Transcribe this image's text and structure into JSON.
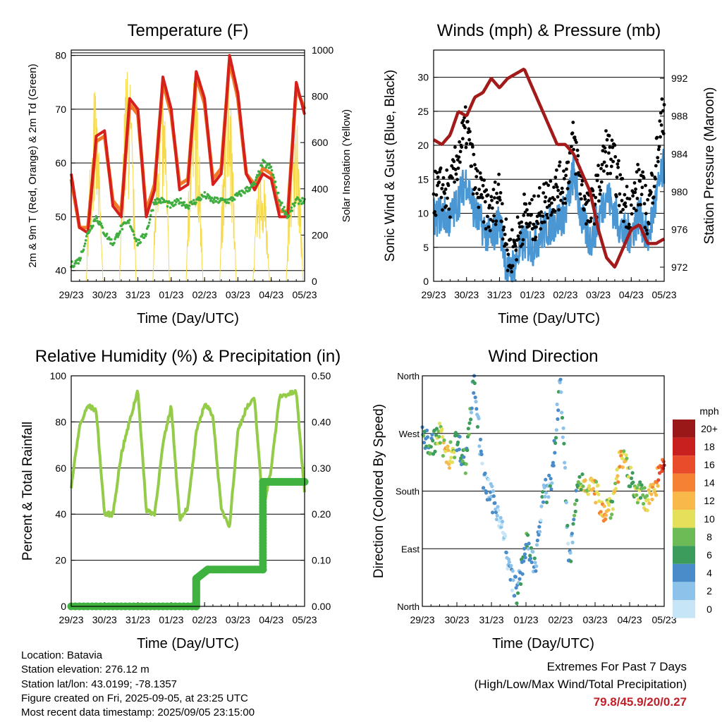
{
  "xticks": [
    "29/23",
    "30/23",
    "31/23",
    "01/23",
    "02/23",
    "03/23",
    "04/23",
    "05/23"
  ],
  "colors": {
    "temp2m": "#d6201c",
    "temp9m": "#f07a28",
    "dewpoint": "#3fad3f",
    "solar": "#f5d94a",
    "wind": "#4a97d4",
    "gust": "#000000",
    "pressure": "#a31a1a",
    "rh": "#94cc4a",
    "precip": "#3fb23f"
  },
  "panels": {
    "temperature": {
      "title": "Temperature (F)",
      "xlabel": "Time (Day/UTC)",
      "ylabel_left": "2m & 9m T (Red, Orange) & 2m Td (Green)",
      "ylabel_right": "Solar Insolation (Yellow)",
      "yticks_left": [
        "40",
        "50",
        "60",
        "70",
        "80"
      ],
      "yticks_right": [
        "0",
        "200",
        "400",
        "600",
        "800",
        "1000"
      ]
    },
    "winds": {
      "title": "Winds (mph) & Pressure (mb)",
      "xlabel": "Time (Day/UTC)",
      "ylabel_left": "Sonic Wind & Gust (Blue, Black)",
      "ylabel_right": "Station Pressure (Maroon)",
      "yticks_left": [
        "0",
        "5",
        "10",
        "15",
        "20",
        "25",
        "30"
      ],
      "yticks_right": [
        "972",
        "976",
        "980",
        "984",
        "988",
        "992"
      ]
    },
    "humidity": {
      "title": "Relative Humidity (%) & Precipitation (in)",
      "xlabel": "Time (Day/UTC)",
      "ylabel_left": "Percent & Total Rainfall",
      "yticks_left": [
        "0",
        "20",
        "40",
        "60",
        "80",
        "100"
      ],
      "yticks_right": [
        "0.00",
        "0.10",
        "0.20",
        "0.30",
        "0.40",
        "0.50"
      ]
    },
    "direction": {
      "title": "Wind Direction",
      "xlabel": "Time (Day/UTC)",
      "ylabel_left": "Direction (Colored By Speed)",
      "yticks_left": [
        "North",
        "East",
        "South",
        "West",
        "North"
      ],
      "colorbar_title": "mph",
      "colorbar_labels": [
        "0",
        "2",
        "4",
        "6",
        "8",
        "10",
        "12",
        "14",
        "16",
        "18",
        "20+"
      ],
      "colorbar_colors": [
        "#c6e6f7",
        "#8dc3ea",
        "#4a8cc9",
        "#3c9c5c",
        "#6dbb57",
        "#e5e05a",
        "#f8b84a",
        "#f48232",
        "#e84c2a",
        "#c8201f",
        "#9a1818"
      ]
    }
  },
  "chart_data": [
    {
      "type": "line",
      "title": "Temperature (F)",
      "xlabel": "Time (Day/UTC)",
      "ylabel": "2m & 9m T (Red, Orange) & 2m Td (Green)",
      "ylabel_right": "Solar Insolation (Yellow)",
      "x": [
        0,
        0.25,
        0.5,
        0.75,
        1,
        1.25,
        1.5,
        1.75,
        2,
        2.25,
        2.5,
        2.75,
        3,
        3.25,
        3.5,
        3.75,
        4,
        4.25,
        4.5,
        4.75,
        5,
        5.25,
        5.5,
        5.75,
        6,
        6.25,
        6.5,
        6.75,
        7
      ],
      "xlim": [
        0,
        7
      ],
      "ylim": [
        38,
        81
      ],
      "ylim_right": [
        0,
        1000
      ],
      "series": [
        {
          "name": "2m T",
          "axis": "left",
          "values": [
            58,
            48,
            47,
            65,
            66,
            52,
            50,
            72,
            70,
            50,
            55,
            76,
            70,
            55,
            56,
            77,
            72,
            56,
            58,
            80,
            73,
            58,
            55,
            58,
            57,
            50,
            50,
            75,
            69
          ]
        },
        {
          "name": "9m T",
          "axis": "left",
          "values": [
            57,
            48,
            48,
            64,
            65,
            53,
            51,
            71,
            69,
            51,
            56,
            75,
            69,
            56,
            57,
            76,
            71,
            57,
            59,
            79,
            72,
            58,
            56,
            59,
            58,
            51,
            51,
            74,
            70
          ]
        },
        {
          "name": "2m Td",
          "axis": "left",
          "values": [
            41,
            42,
            47,
            50,
            47,
            45,
            48,
            49,
            45,
            47,
            53,
            53,
            52,
            53,
            52,
            53,
            54,
            53,
            53,
            53,
            54,
            55,
            56,
            60,
            59,
            53,
            50,
            53,
            53
          ]
        },
        {
          "name": "Solar Insolation",
          "axis": "right",
          "values": [
            0,
            0,
            0,
            820,
            0,
            0,
            0,
            940,
            0,
            0,
            0,
            900,
            0,
            0,
            0,
            920,
            0,
            0,
            0,
            880,
            0,
            0,
            0,
            520,
            0,
            0,
            0,
            780,
            0
          ]
        }
      ]
    },
    {
      "type": "line",
      "title": "Winds (mph) & Pressure (mb)",
      "xlabel": "Time (Day/UTC)",
      "ylabel": "Sonic Wind & Gust (Blue, Black)",
      "ylabel_right": "Station Pressure (Maroon)",
      "x": [
        0,
        0.25,
        0.5,
        0.75,
        1,
        1.25,
        1.5,
        1.75,
        2,
        2.25,
        2.5,
        2.75,
        3,
        3.25,
        3.5,
        3.75,
        4,
        4.25,
        4.5,
        4.75,
        5,
        5.25,
        5.5,
        5.75,
        6,
        6.25,
        6.5,
        6.75,
        7
      ],
      "xlim": [
        0,
        7
      ],
      "ylim": [
        0,
        34
      ],
      "ylim_right": [
        970.5,
        995
      ],
      "series": [
        {
          "name": "Sonic Wind",
          "axis": "left",
          "values": [
            9,
            10,
            9,
            12,
            15,
            10,
            8,
            6,
            9,
            1,
            3,
            6,
            5,
            7,
            8,
            9,
            10,
            16,
            9,
            6,
            9,
            13,
            10,
            7,
            7,
            10,
            6,
            12,
            17
          ]
        },
        {
          "name": "Gust",
          "axis": "left",
          "values": [
            12,
            13,
            12,
            18,
            22,
            14,
            11,
            9,
            13,
            3,
            5,
            9,
            8,
            10,
            12,
            13,
            14,
            20,
            13,
            9,
            13,
            19,
            16,
            11,
            10,
            14,
            9,
            17,
            25
          ]
        },
        {
          "name": "Station Pressure",
          "axis": "right",
          "values": [
            985.5,
            985,
            986,
            988.5,
            988,
            990,
            990.5,
            992,
            991,
            992,
            992.5,
            993,
            991,
            989,
            987,
            985,
            985,
            984,
            982,
            980,
            976,
            973,
            972,
            974,
            976,
            976.5,
            974.5,
            974.5,
            975
          ]
        }
      ]
    },
    {
      "type": "line",
      "title": "Relative Humidity (%) & Precipitation (in)",
      "xlabel": "Time (Day/UTC)",
      "ylabel": "Percent & Total Rainfall",
      "x": [
        0,
        0.25,
        0.5,
        0.75,
        1,
        1.25,
        1.5,
        1.75,
        2,
        2.25,
        2.5,
        2.75,
        3,
        3.25,
        3.5,
        3.75,
        4,
        4.25,
        4.5,
        4.75,
        5,
        5.25,
        5.5,
        5.75,
        6,
        6.25,
        6.5,
        6.75,
        7
      ],
      "xlim": [
        0,
        7
      ],
      "ylim": [
        0,
        100
      ],
      "ylim_right": [
        0,
        0.5
      ],
      "series": [
        {
          "name": "Relative Humidity",
          "axis": "left",
          "values": [
            52,
            78,
            87,
            85,
            40,
            40,
            66,
            80,
            94,
            42,
            40,
            70,
            87,
            38,
            43,
            75,
            88,
            83,
            42,
            35,
            76,
            86,
            90,
            42,
            60,
            91,
            92,
            93,
            49
          ]
        },
        {
          "name": "Total Precipitation",
          "axis": "right",
          "values": [
            0,
            0,
            0,
            0,
            0,
            0,
            0,
            0,
            0,
            0,
            0,
            0,
            0,
            0,
            0,
            0.06,
            0.08,
            0.08,
            0.08,
            0.08,
            0.08,
            0.08,
            0.08,
            0.27,
            0.27,
            0.27,
            0.27,
            0.27,
            0.27
          ]
        }
      ]
    },
    {
      "type": "scatter",
      "title": "Wind Direction",
      "xlabel": "Time (Day/UTC)",
      "ylabel": "Direction (Colored By Speed)",
      "x": [
        0,
        0.25,
        0.5,
        0.75,
        1,
        1.25,
        1.5,
        1.75,
        2,
        2.25,
        2.5,
        2.75,
        3,
        3.25,
        3.5,
        3.75,
        4,
        4.25,
        4.5,
        4.75,
        5,
        5.25,
        5.5,
        5.75,
        6,
        6.25,
        6.5,
        6.75,
        7
      ],
      "xlim": [
        0,
        7
      ],
      "ylim": [
        0,
        360
      ],
      "series": [
        {
          "name": "Wind Direction",
          "values": [
            270,
            250,
            270,
            230,
            260,
            225,
            360,
            200,
            170,
            140,
            60,
            20,
            100,
            60,
            170,
            200,
            360,
            60,
            190,
            195,
            180,
            150,
            160,
            240,
            200,
            180,
            160,
            190,
            240
          ]
        },
        {
          "name": "Speed",
          "values": [
            7,
            8,
            9,
            14,
            6,
            7,
            6,
            3,
            4,
            2,
            3,
            5,
            6,
            4,
            4,
            4,
            5,
            4,
            8,
            11,
            12,
            14,
            9,
            14,
            8,
            9,
            10,
            15,
            18
          ]
        }
      ]
    }
  ],
  "footer": {
    "location": "Location: Batavia",
    "elevation": "Station elevation: 276.12 m",
    "latlon": "Station lat/lon: 43.0199; -78.1357",
    "created": "Figure created on Fri, 2025-09-05, at 23:25 UTC",
    "latest": "Most recent data timestamp: 2025/09/05 23:15:00"
  },
  "extremes": {
    "title": "Extremes For Past 7 Days",
    "subtitle": "(High/Low/Max Wind/Total Precipitation)",
    "values": "79.8/45.9/20/0.27"
  }
}
